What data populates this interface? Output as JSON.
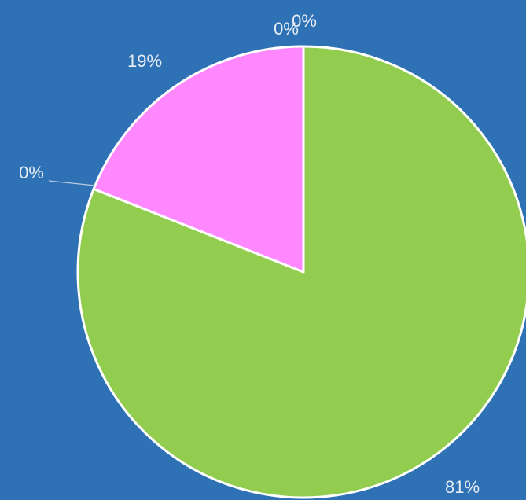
{
  "colors": {
    "background": "#2e71b5",
    "slice_border": "#ffffff",
    "label_text": "#e8eef6",
    "leader_line": "#b9c9de"
  },
  "chart_data": {
    "type": "pie",
    "title": "",
    "start_angle_deg": 0,
    "direction": "clockwise",
    "slices": [
      {
        "label": "81%",
        "value": 81,
        "color": "#92cd50"
      },
      {
        "label": "0%",
        "value": 0,
        "color": "#5b9bd5"
      },
      {
        "label": "19%",
        "value": 19,
        "color": "#ff88ff"
      },
      {
        "label": "0%",
        "value": 0,
        "color": "#ffc000"
      },
      {
        "label": "0%",
        "value": 0,
        "color": "#70ad47"
      }
    ],
    "legend": "none"
  }
}
